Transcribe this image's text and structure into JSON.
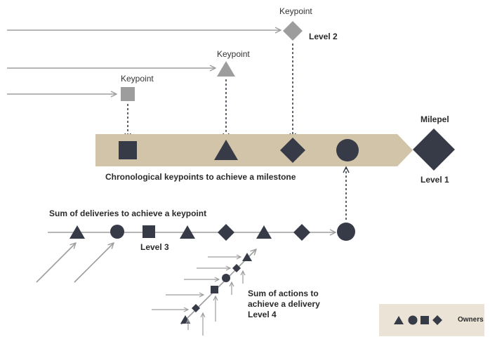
{
  "labels": {
    "keypoint_1": "Keypoint",
    "keypoint_2": "Keypoint",
    "keypoint_3": "Keypoint",
    "level_2": "Level 2",
    "milepel": "Milepel",
    "level_1": "Level 1",
    "chronological": "Chronological keypoints to achieve a milestone",
    "sum_deliveries": "Sum of deliveries to achieve a keypoint",
    "level_3": "Level 3",
    "sum_actions_line1": "Sum of actions to",
    "sum_actions_line2": "achieve a delivery",
    "level_4": "Level 4",
    "owners": "Owners"
  },
  "colors": {
    "dark": "#363b47",
    "gray": "#9d9d9d",
    "band": "#d2c4a9",
    "legend_bg": "#ebe4d6"
  }
}
